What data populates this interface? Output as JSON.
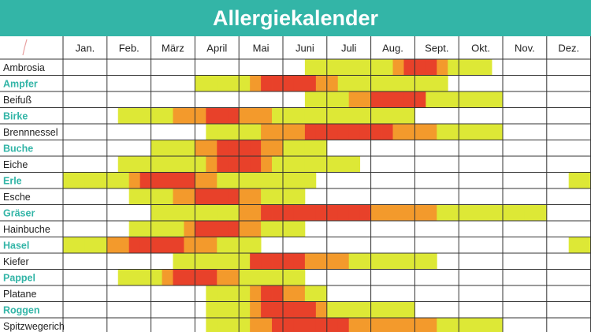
{
  "title": "Allergiekalender",
  "colors": {
    "title_bg": "#33b5a7",
    "tree_label": "#33b5a7",
    "plant_label": "#222222",
    "levels": {
      "1": "#dde836",
      "2": "#f39a2c",
      "3": "#e8412a"
    },
    "grid": "#333333"
  },
  "chart_data": {
    "type": "heatmap",
    "title": "Allergiekalender",
    "months": [
      "Jan.",
      "Feb.",
      "März",
      "April",
      "Mai",
      "Juni",
      "Juli",
      "Aug.",
      "Sept.",
      "Okt.",
      "Nov.",
      "Dez."
    ],
    "half_months_per_month": 4,
    "value_scale": "0 = keine Belastung, 1 = gering (gelb), 2 = mittel (orange), 3 = stark (rot)",
    "rows": [
      {
        "name": "Ambrosia",
        "highlight": false,
        "values": [
          0,
          0,
          0,
          0,
          0,
          0,
          0,
          0,
          0,
          0,
          0,
          0,
          0,
          0,
          0,
          0,
          0,
          0,
          0,
          0,
          0,
          0,
          1,
          1,
          1,
          1,
          1,
          1,
          1,
          1,
          2,
          3,
          3,
          3,
          2,
          1,
          1,
          1,
          1,
          0,
          0,
          0,
          0,
          0,
          0,
          0,
          0,
          0
        ]
      },
      {
        "name": "Ampfer",
        "highlight": true,
        "values": [
          0,
          0,
          0,
          0,
          0,
          0,
          0,
          0,
          0,
          0,
          0,
          0,
          1,
          1,
          1,
          1,
          1,
          2,
          3,
          3,
          3,
          3,
          3,
          2,
          2,
          1,
          1,
          1,
          1,
          1,
          1,
          1,
          1,
          1,
          1,
          0,
          0,
          0,
          0,
          0,
          0,
          0,
          0,
          0,
          0,
          0,
          0,
          0
        ]
      },
      {
        "name": "Beifuß",
        "highlight": false,
        "values": [
          0,
          0,
          0,
          0,
          0,
          0,
          0,
          0,
          0,
          0,
          0,
          0,
          0,
          0,
          0,
          0,
          0,
          0,
          0,
          0,
          0,
          0,
          1,
          1,
          1,
          1,
          2,
          2,
          3,
          3,
          3,
          3,
          3,
          1,
          1,
          1,
          1,
          1,
          1,
          1,
          0,
          0,
          0,
          0,
          0,
          0,
          0,
          0
        ]
      },
      {
        "name": "Birke",
        "highlight": true,
        "values": [
          0,
          0,
          0,
          0,
          0,
          1,
          1,
          1,
          1,
          1,
          2,
          2,
          2,
          3,
          3,
          3,
          2,
          2,
          2,
          1,
          1,
          1,
          1,
          1,
          1,
          1,
          1,
          1,
          1,
          1,
          1,
          1,
          0,
          0,
          0,
          0,
          0,
          0,
          0,
          0,
          0,
          0,
          0,
          0,
          0,
          0,
          0,
          0
        ]
      },
      {
        "name": "Brennnessel",
        "highlight": false,
        "values": [
          0,
          0,
          0,
          0,
          0,
          0,
          0,
          0,
          0,
          0,
          0,
          0,
          0,
          1,
          1,
          1,
          1,
          1,
          2,
          2,
          2,
          2,
          3,
          3,
          3,
          3,
          3,
          3,
          3,
          3,
          2,
          2,
          2,
          2,
          1,
          1,
          1,
          1,
          1,
          1,
          0,
          0,
          0,
          0,
          0,
          0,
          0,
          0
        ]
      },
      {
        "name": "Buche",
        "highlight": true,
        "values": [
          0,
          0,
          0,
          0,
          0,
          0,
          0,
          0,
          1,
          1,
          1,
          1,
          2,
          2,
          3,
          3,
          3,
          3,
          2,
          2,
          1,
          1,
          1,
          1,
          0,
          0,
          0,
          0,
          0,
          0,
          0,
          0,
          0,
          0,
          0,
          0,
          0,
          0,
          0,
          0,
          0,
          0,
          0,
          0,
          0,
          0,
          0,
          0
        ]
      },
      {
        "name": "Eiche",
        "highlight": false,
        "values": [
          0,
          0,
          0,
          0,
          0,
          1,
          1,
          1,
          1,
          1,
          1,
          1,
          1,
          2,
          3,
          3,
          3,
          3,
          2,
          1,
          1,
          1,
          1,
          1,
          1,
          1,
          1,
          0,
          0,
          0,
          0,
          0,
          0,
          0,
          0,
          0,
          0,
          0,
          0,
          0,
          0,
          0,
          0,
          0,
          0,
          0,
          0,
          0
        ]
      },
      {
        "name": "Erle",
        "highlight": true,
        "values": [
          1,
          1,
          1,
          1,
          1,
          1,
          2,
          3,
          3,
          3,
          3,
          3,
          2,
          2,
          1,
          1,
          1,
          1,
          1,
          1,
          1,
          1,
          1,
          0,
          0,
          0,
          0,
          0,
          0,
          0,
          0,
          0,
          0,
          0,
          0,
          0,
          0,
          0,
          0,
          0,
          0,
          0,
          0,
          0,
          0,
          0,
          1,
          1
        ]
      },
      {
        "name": "Esche",
        "highlight": false,
        "values": [
          0,
          0,
          0,
          0,
          0,
          0,
          1,
          1,
          1,
          1,
          2,
          2,
          3,
          3,
          3,
          3,
          2,
          2,
          1,
          1,
          1,
          1,
          0,
          0,
          0,
          0,
          0,
          0,
          0,
          0,
          0,
          0,
          0,
          0,
          0,
          0,
          0,
          0,
          0,
          0,
          0,
          0,
          0,
          0,
          0,
          0,
          0,
          0
        ]
      },
      {
        "name": "Gräser",
        "highlight": true,
        "values": [
          0,
          0,
          0,
          0,
          0,
          0,
          0,
          0,
          1,
          1,
          1,
          1,
          1,
          1,
          1,
          1,
          2,
          2,
          3,
          3,
          3,
          3,
          3,
          3,
          3,
          3,
          3,
          3,
          2,
          2,
          2,
          2,
          2,
          2,
          1,
          1,
          1,
          1,
          1,
          1,
          1,
          1,
          1,
          1,
          0,
          0,
          0,
          0
        ]
      },
      {
        "name": "Hainbuche",
        "highlight": false,
        "values": [
          0,
          0,
          0,
          0,
          0,
          0,
          1,
          1,
          1,
          1,
          1,
          2,
          3,
          3,
          3,
          3,
          2,
          2,
          1,
          1,
          1,
          1,
          0,
          0,
          0,
          0,
          0,
          0,
          0,
          0,
          0,
          0,
          0,
          0,
          0,
          0,
          0,
          0,
          0,
          0,
          0,
          0,
          0,
          0,
          0,
          0,
          0,
          0
        ]
      },
      {
        "name": "Hasel",
        "highlight": true,
        "values": [
          1,
          1,
          1,
          1,
          2,
          2,
          3,
          3,
          3,
          3,
          3,
          2,
          2,
          2,
          1,
          1,
          1,
          1,
          0,
          0,
          0,
          0,
          0,
          0,
          0,
          0,
          0,
          0,
          0,
          0,
          0,
          0,
          0,
          0,
          0,
          0,
          0,
          0,
          0,
          0,
          0,
          0,
          0,
          0,
          0,
          0,
          1,
          1
        ]
      },
      {
        "name": "Kiefer",
        "highlight": false,
        "values": [
          0,
          0,
          0,
          0,
          0,
          0,
          0,
          0,
          0,
          0,
          1,
          1,
          1,
          1,
          1,
          1,
          1,
          3,
          3,
          3,
          3,
          3,
          2,
          2,
          2,
          2,
          1,
          1,
          1,
          1,
          1,
          1,
          1,
          1,
          0,
          0,
          0,
          0,
          0,
          0,
          0,
          0,
          0,
          0,
          0,
          0,
          0,
          0
        ]
      },
      {
        "name": "Pappel",
        "highlight": true,
        "values": [
          0,
          0,
          0,
          0,
          0,
          1,
          1,
          1,
          1,
          2,
          3,
          3,
          3,
          3,
          2,
          2,
          1,
          1,
          1,
          1,
          1,
          1,
          0,
          0,
          0,
          0,
          0,
          0,
          0,
          0,
          0,
          0,
          0,
          0,
          0,
          0,
          0,
          0,
          0,
          0,
          0,
          0,
          0,
          0,
          0,
          0,
          0,
          0
        ]
      },
      {
        "name": "Platane",
        "highlight": false,
        "values": [
          0,
          0,
          0,
          0,
          0,
          0,
          0,
          0,
          0,
          0,
          0,
          0,
          0,
          1,
          1,
          1,
          1,
          2,
          3,
          3,
          2,
          2,
          1,
          1,
          0,
          0,
          0,
          0,
          0,
          0,
          0,
          0,
          0,
          0,
          0,
          0,
          0,
          0,
          0,
          0,
          0,
          0,
          0,
          0,
          0,
          0,
          0,
          0
        ]
      },
      {
        "name": "Roggen",
        "highlight": true,
        "values": [
          0,
          0,
          0,
          0,
          0,
          0,
          0,
          0,
          0,
          0,
          0,
          0,
          0,
          1,
          1,
          1,
          1,
          2,
          3,
          3,
          3,
          3,
          3,
          2,
          1,
          1,
          1,
          1,
          1,
          1,
          1,
          1,
          0,
          0,
          0,
          0,
          0,
          0,
          0,
          0,
          0,
          0,
          0,
          0,
          0,
          0,
          0,
          0
        ]
      },
      {
        "name": "Spitzwegerich",
        "highlight": false,
        "values": [
          0,
          0,
          0,
          0,
          0,
          0,
          0,
          0,
          0,
          0,
          0,
          0,
          0,
          1,
          1,
          1,
          1,
          2,
          2,
          3,
          3,
          3,
          3,
          3,
          3,
          3,
          2,
          2,
          2,
          2,
          2,
          2,
          2,
          2,
          1,
          1,
          1,
          1,
          1,
          1,
          0,
          0,
          0,
          0,
          0,
          0,
          0,
          0
        ]
      }
    ]
  }
}
